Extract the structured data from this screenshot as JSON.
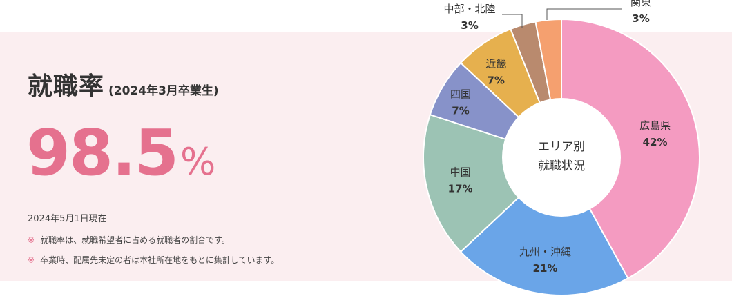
{
  "header": {
    "title": "就職率",
    "subtitle": "(2024年3月卒業生)"
  },
  "rate": {
    "value": "98.5",
    "unit": "%"
  },
  "date_text": "2024年5月1日現在",
  "notes": [
    {
      "mark": "※",
      "text": "就職率は、就職希望者に占める就職者の割合です。"
    },
    {
      "mark": "※",
      "text": "卒業時、配属先未定の者は本社所在地をもとに集計しています。"
    }
  ],
  "chart_data": {
    "type": "pie",
    "donut": true,
    "center_label": [
      "エリア別",
      "就職状況"
    ],
    "unit": "%",
    "slices": [
      {
        "label": "広島県",
        "value": 42,
        "color": "#f49bc1"
      },
      {
        "label": "九州・沖縄",
        "value": 21,
        "color": "#6aa5e8"
      },
      {
        "label": "中国",
        "value": 17,
        "color": "#9cc3b4"
      },
      {
        "label": "四国",
        "value": 7,
        "color": "#8792c9"
      },
      {
        "label": "近畿",
        "value": 7,
        "color": "#e6b04e"
      },
      {
        "label": "中部・北陸",
        "value": 3,
        "color": "#b98a6e"
      },
      {
        "label": "関東",
        "value": 3,
        "color": "#f5a06f"
      }
    ]
  }
}
